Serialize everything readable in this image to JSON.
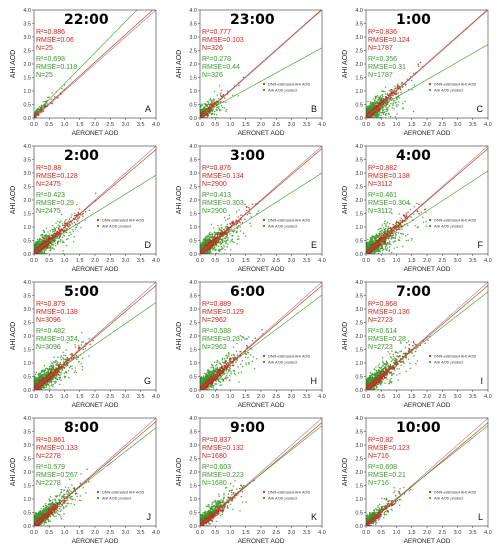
{
  "chart_data": [
    {
      "type": "scatter",
      "time": "22:00",
      "panel": "A",
      "dnn": {
        "r2": "0.886",
        "rmse": "0.06",
        "n": "25"
      },
      "product": {
        "r2": "0.698",
        "rmse": "0.118",
        "n": "25"
      },
      "dnn_slope": 1.02,
      "product_slope": 1.15,
      "density": 0.02,
      "spread": 0.12,
      "show_legend": false
    },
    {
      "type": "scatter",
      "time": "23:00",
      "panel": "B",
      "dnn": {
        "r2": "0.777",
        "rmse": "0.103",
        "n": "326"
      },
      "product": {
        "r2": "0.278",
        "rmse": "0.44",
        "n": "326"
      },
      "dnn_slope": 1.0,
      "product_slope": 0.62,
      "density": 0.25,
      "spread": 0.3,
      "show_legend": true
    },
    {
      "type": "scatter",
      "time": "1:00",
      "panel": "C",
      "dnn": {
        "r2": "0.836",
        "rmse": "0.124",
        "n": "1787"
      },
      "product": {
        "r2": "0.356",
        "rmse": "0.31",
        "n": "1787"
      },
      "dnn_slope": 1.0,
      "product_slope": 0.65,
      "density": 0.7,
      "spread": 0.32,
      "show_legend": true
    },
    {
      "type": "scatter",
      "time": "2:00",
      "panel": "D",
      "dnn": {
        "r2": "0.88",
        "rmse": "0.128",
        "n": "2475"
      },
      "product": {
        "r2": "0.423",
        "rmse": "0.29",
        "n": "2475"
      },
      "dnn_slope": 0.96,
      "product_slope": 0.7,
      "density": 0.85,
      "spread": 0.3,
      "show_legend": true
    },
    {
      "type": "scatter",
      "time": "3:00",
      "panel": "E",
      "dnn": {
        "r2": "0.876",
        "rmse": "0.134",
        "n": "2900"
      },
      "product": {
        "r2": "0.413",
        "rmse": "0.303",
        "n": "2900"
      },
      "dnn_slope": 0.97,
      "product_slope": 0.72,
      "density": 0.9,
      "spread": 0.3,
      "show_legend": true
    },
    {
      "type": "scatter",
      "time": "4:00",
      "panel": "F",
      "dnn": {
        "r2": "0.882",
        "rmse": "0.138",
        "n": "3112"
      },
      "product": {
        "r2": "0.461",
        "rmse": "0.304",
        "n": "3112"
      },
      "dnn_slope": 0.97,
      "product_slope": 0.74,
      "density": 0.95,
      "spread": 0.3,
      "show_legend": true
    },
    {
      "type": "scatter",
      "time": "5:00",
      "panel": "G",
      "dnn": {
        "r2": "0.879",
        "rmse": "0.138",
        "n": "3096"
      },
      "product": {
        "r2": "0.482",
        "rmse": "0.324",
        "n": "3096"
      },
      "dnn_slope": 0.96,
      "product_slope": 0.78,
      "density": 0.95,
      "spread": 0.3,
      "show_legend": false
    },
    {
      "type": "scatter",
      "time": "6:00",
      "panel": "H",
      "dnn": {
        "r2": "0.889",
        "rmse": "0.129",
        "n": "2962"
      },
      "product": {
        "r2": "0.588",
        "rmse": "0.287",
        "n": "2962"
      },
      "dnn_slope": 0.96,
      "product_slope": 0.85,
      "density": 0.9,
      "spread": 0.28,
      "show_legend": true
    },
    {
      "type": "scatter",
      "time": "7:00",
      "panel": "I",
      "dnn": {
        "r2": "0.868",
        "rmse": "0.136",
        "n": "2723"
      },
      "product": {
        "r2": "0.614",
        "rmse": "0.28",
        "n": "2723"
      },
      "dnn_slope": 0.96,
      "product_slope": 0.88,
      "density": 0.88,
      "spread": 0.28,
      "show_legend": true
    },
    {
      "type": "scatter",
      "time": "8:00",
      "panel": "J",
      "dnn": {
        "r2": "0.861",
        "rmse": "0.133",
        "n": "2278"
      },
      "product": {
        "r2": "0.579",
        "rmse": "0.267",
        "n": "2278"
      },
      "dnn_slope": 0.96,
      "product_slope": 0.88,
      "density": 0.8,
      "spread": 0.27,
      "show_legend": true
    },
    {
      "type": "scatter",
      "time": "9:00",
      "panel": "K",
      "dnn": {
        "r2": "0.837",
        "rmse": "0.132",
        "n": "1680"
      },
      "product": {
        "r2": "0.603",
        "rmse": "0.223",
        "n": "1680"
      },
      "dnn_slope": 0.95,
      "product_slope": 0.9,
      "density": 0.6,
      "spread": 0.25,
      "show_legend": true
    },
    {
      "type": "scatter",
      "time": "10:00",
      "panel": "L",
      "dnn": {
        "r2": "0.82",
        "rmse": "0.123",
        "n": "716"
      },
      "product": {
        "r2": "0.608",
        "rmse": "0.21",
        "n": "716"
      },
      "dnn_slope": 0.95,
      "product_slope": 0.9,
      "density": 0.35,
      "spread": 0.24,
      "show_legend": true
    }
  ],
  "axes": {
    "xlabel": "AERONET AOD",
    "ylabel": "AHI AOD",
    "xticks": [
      "0.0",
      "0.5",
      "1.0",
      "1.5",
      "2.0",
      "2.5",
      "3.0",
      "3.5",
      "4.0"
    ],
    "yticks": [
      "0.0",
      "0.5",
      "1.0",
      "1.5",
      "2.0",
      "2.5",
      "3.0",
      "3.5",
      "4.0"
    ],
    "xlim": [
      0,
      4
    ],
    "ylim": [
      0,
      4
    ]
  },
  "legend": {
    "dnn": "DNN-estimated AHI AOD",
    "product": "AHI AOD product"
  },
  "colors": {
    "dnn": "#c8281e",
    "product": "#3b9a2a",
    "one_to_one": "#888888",
    "axis": "#333333"
  },
  "stat_labels": {
    "r2": "R²=",
    "rmse": "RMSE=",
    "n": "N="
  }
}
